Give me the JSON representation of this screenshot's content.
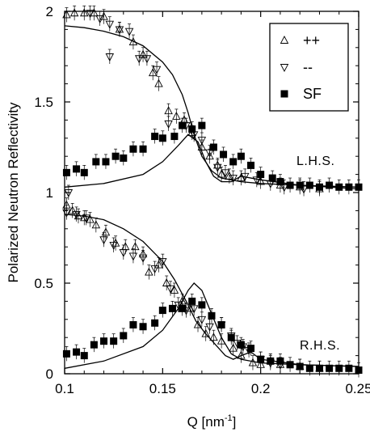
{
  "chart_data": {
    "type": "scatter",
    "xlabel": "Q [nm",
    "xlabel_sup": "-1",
    "xlabel_close": "]",
    "ylabel": "Polarized Neutron Reflectivity",
    "xlim": [
      0.1,
      0.25
    ],
    "ylim": [
      0,
      2
    ],
    "x_ticks": [
      "0.1",
      "0.15",
      "0.2",
      "0.25"
    ],
    "x_tick_values": [
      0.1,
      0.15,
      0.2,
      0.25
    ],
    "y_ticks": [
      "0",
      "0.5",
      "1",
      "1.5",
      "2"
    ],
    "y_tick_values": [
      0,
      0.5,
      1,
      1.5,
      2
    ],
    "grid": false,
    "legend_position": "top-right",
    "annotations": [
      "L.H.S.",
      "R.H.S."
    ],
    "series": [
      {
        "name": "++",
        "marker": "triangle-up-open",
        "points": [
          [
            0.101,
            1.98
          ],
          [
            0.105,
            1.99
          ],
          [
            0.11,
            1.99
          ],
          [
            0.115,
            1.99
          ],
          [
            0.12,
            1.97
          ],
          [
            0.128,
            1.9
          ],
          [
            0.135,
            1.83
          ],
          [
            0.14,
            1.76
          ],
          [
            0.145,
            1.66
          ],
          [
            0.148,
            1.6
          ],
          [
            0.153,
            1.45
          ],
          [
            0.157,
            1.42
          ],
          [
            0.161,
            1.4
          ],
          [
            0.165,
            1.33
          ],
          [
            0.17,
            1.25
          ],
          [
            0.174,
            1.2
          ],
          [
            0.178,
            1.15
          ],
          [
            0.18,
            1.1
          ],
          [
            0.184,
            1.09
          ],
          [
            0.19,
            1.08
          ],
          [
            0.2,
            1.06
          ],
          [
            0.21,
            1.04
          ],
          [
            0.22,
            1.03
          ],
          [
            0.23,
            1.02
          ],
          [
            0.101,
            0.93
          ],
          [
            0.104,
            0.9
          ],
          [
            0.107,
            0.87
          ],
          [
            0.11,
            0.86
          ],
          [
            0.113,
            0.85
          ],
          [
            0.116,
            0.82
          ],
          [
            0.121,
            0.78
          ],
          [
            0.126,
            0.72
          ],
          [
            0.131,
            0.7
          ],
          [
            0.136,
            0.7
          ],
          [
            0.14,
            0.66
          ],
          [
            0.143,
            0.56
          ],
          [
            0.148,
            0.6
          ],
          [
            0.152,
            0.5
          ],
          [
            0.156,
            0.46
          ],
          [
            0.16,
            0.4
          ],
          [
            0.164,
            0.36
          ],
          [
            0.168,
            0.27
          ],
          [
            0.172,
            0.22
          ],
          [
            0.176,
            0.2
          ],
          [
            0.18,
            0.18
          ],
          [
            0.186,
            0.14
          ],
          [
            0.19,
            0.1
          ],
          [
            0.196,
            0.06
          ],
          [
            0.2,
            0.05
          ],
          [
            0.205,
            0.07
          ],
          [
            0.21,
            0.05
          ],
          [
            0.22,
            0.04
          ],
          [
            0.23,
            0.03
          ]
        ]
      },
      {
        "name": "--",
        "marker": "triangle-down-open",
        "points": [
          [
            0.113,
            1.99
          ],
          [
            0.118,
            1.96
          ],
          [
            0.123,
            1.93
          ],
          [
            0.128,
            1.9
          ],
          [
            0.133,
            1.89
          ],
          [
            0.138,
            1.74
          ],
          [
            0.142,
            1.74
          ],
          [
            0.147,
            1.68
          ],
          [
            0.123,
            1.75
          ],
          [
            0.153,
            1.38
          ],
          [
            0.162,
            1.37
          ],
          [
            0.166,
            1.32
          ],
          [
            0.17,
            1.29
          ],
          [
            0.174,
            1.22
          ],
          [
            0.178,
            1.14
          ],
          [
            0.182,
            1.11
          ],
          [
            0.186,
            1.08
          ],
          [
            0.192,
            1.09
          ],
          [
            0.198,
            1.07
          ],
          [
            0.205,
            1.05
          ],
          [
            0.212,
            1.03
          ],
          [
            0.222,
            1.02
          ],
          [
            0.102,
            1.0
          ],
          [
            0.101,
            0.89
          ],
          [
            0.106,
            0.88
          ],
          [
            0.111,
            0.86
          ],
          [
            0.12,
            0.74
          ],
          [
            0.125,
            0.71
          ],
          [
            0.13,
            0.67
          ],
          [
            0.135,
            0.65
          ],
          [
            0.14,
            0.64
          ],
          [
            0.146,
            0.58
          ],
          [
            0.15,
            0.62
          ],
          [
            0.154,
            0.47
          ],
          [
            0.158,
            0.38
          ],
          [
            0.162,
            0.35
          ],
          [
            0.166,
            0.36
          ],
          [
            0.17,
            0.3
          ],
          [
            0.174,
            0.26
          ],
          [
            0.18,
            0.27
          ],
          [
            0.185,
            0.21
          ],
          [
            0.188,
            0.17
          ],
          [
            0.191,
            0.15
          ],
          [
            0.194,
            0.13
          ],
          [
            0.2,
            0.08
          ],
          [
            0.205,
            0.06
          ],
          [
            0.21,
            0.05
          ]
        ]
      },
      {
        "name": "SF",
        "marker": "square-filled",
        "points": [
          [
            0.101,
            1.11
          ],
          [
            0.106,
            1.13
          ],
          [
            0.11,
            1.11
          ],
          [
            0.116,
            1.17
          ],
          [
            0.121,
            1.17
          ],
          [
            0.126,
            1.2
          ],
          [
            0.13,
            1.19
          ],
          [
            0.135,
            1.24
          ],
          [
            0.14,
            1.24
          ],
          [
            0.146,
            1.31
          ],
          [
            0.15,
            1.3
          ],
          [
            0.156,
            1.31
          ],
          [
            0.16,
            1.37
          ],
          [
            0.165,
            1.35
          ],
          [
            0.17,
            1.37
          ],
          [
            0.176,
            1.25
          ],
          [
            0.181,
            1.21
          ],
          [
            0.186,
            1.17
          ],
          [
            0.19,
            1.2
          ],
          [
            0.195,
            1.15
          ],
          [
            0.2,
            1.1
          ],
          [
            0.206,
            1.08
          ],
          [
            0.21,
            1.06
          ],
          [
            0.215,
            1.04
          ],
          [
            0.22,
            1.04
          ],
          [
            0.225,
            1.04
          ],
          [
            0.23,
            1.03
          ],
          [
            0.235,
            1.04
          ],
          [
            0.24,
            1.03
          ],
          [
            0.245,
            1.03
          ],
          [
            0.25,
            1.03
          ],
          [
            0.101,
            0.11
          ],
          [
            0.106,
            0.12
          ],
          [
            0.11,
            0.1
          ],
          [
            0.115,
            0.16
          ],
          [
            0.12,
            0.18
          ],
          [
            0.125,
            0.18
          ],
          [
            0.13,
            0.21
          ],
          [
            0.135,
            0.27
          ],
          [
            0.14,
            0.26
          ],
          [
            0.146,
            0.28
          ],
          [
            0.15,
            0.35
          ],
          [
            0.155,
            0.36
          ],
          [
            0.16,
            0.36
          ],
          [
            0.165,
            0.4
          ],
          [
            0.17,
            0.38
          ],
          [
            0.175,
            0.32
          ],
          [
            0.18,
            0.27
          ],
          [
            0.185,
            0.2
          ],
          [
            0.19,
            0.16
          ],
          [
            0.195,
            0.14
          ],
          [
            0.2,
            0.08
          ],
          [
            0.205,
            0.07
          ],
          [
            0.21,
            0.07
          ],
          [
            0.215,
            0.05
          ],
          [
            0.22,
            0.04
          ],
          [
            0.225,
            0.03
          ],
          [
            0.23,
            0.03
          ],
          [
            0.235,
            0.03
          ],
          [
            0.24,
            0.03
          ],
          [
            0.245,
            0.03
          ],
          [
            0.25,
            0.02
          ]
        ]
      }
    ],
    "curves": [
      {
        "points": [
          [
            0.1,
            1.92
          ],
          [
            0.11,
            1.91
          ],
          [
            0.12,
            1.89
          ],
          [
            0.13,
            1.86
          ],
          [
            0.14,
            1.81
          ],
          [
            0.15,
            1.72
          ],
          [
            0.155,
            1.65
          ],
          [
            0.16,
            1.54
          ],
          [
            0.163,
            1.44
          ],
          [
            0.166,
            1.32
          ],
          [
            0.17,
            1.2
          ],
          [
            0.175,
            1.12
          ],
          [
            0.18,
            1.08
          ],
          [
            0.19,
            1.06
          ],
          [
            0.2,
            1.05
          ],
          [
            0.22,
            1.04
          ],
          [
            0.25,
            1.03
          ]
        ]
      },
      {
        "points": [
          [
            0.1,
            1.03
          ],
          [
            0.12,
            1.05
          ],
          [
            0.14,
            1.1
          ],
          [
            0.15,
            1.17
          ],
          [
            0.158,
            1.26
          ],
          [
            0.163,
            1.32
          ],
          [
            0.168,
            1.28
          ],
          [
            0.172,
            1.17
          ],
          [
            0.176,
            1.09
          ],
          [
            0.18,
            1.06
          ],
          [
            0.185,
            1.06
          ],
          [
            0.19,
            1.09
          ],
          [
            0.2,
            1.07
          ],
          [
            0.22,
            1.04
          ],
          [
            0.25,
            1.02
          ]
        ]
      },
      {
        "points": [
          [
            0.1,
            0.88
          ],
          [
            0.11,
            0.87
          ],
          [
            0.12,
            0.85
          ],
          [
            0.13,
            0.8
          ],
          [
            0.14,
            0.73
          ],
          [
            0.15,
            0.62
          ],
          [
            0.156,
            0.52
          ],
          [
            0.162,
            0.4
          ],
          [
            0.167,
            0.29
          ],
          [
            0.172,
            0.22
          ],
          [
            0.177,
            0.16
          ],
          [
            0.182,
            0.1
          ],
          [
            0.186,
            0.08
          ],
          [
            0.19,
            0.1
          ],
          [
            0.195,
            0.12
          ],
          [
            0.2,
            0.08
          ],
          [
            0.22,
            0.05
          ],
          [
            0.25,
            0.04
          ]
        ]
      },
      {
        "points": [
          [
            0.1,
            0.03
          ],
          [
            0.12,
            0.07
          ],
          [
            0.14,
            0.15
          ],
          [
            0.15,
            0.24
          ],
          [
            0.158,
            0.36
          ],
          [
            0.163,
            0.46
          ],
          [
            0.166,
            0.5
          ],
          [
            0.17,
            0.46
          ],
          [
            0.175,
            0.33
          ],
          [
            0.18,
            0.2
          ],
          [
            0.185,
            0.11
          ],
          [
            0.19,
            0.08
          ],
          [
            0.2,
            0.06
          ],
          [
            0.22,
            0.05
          ],
          [
            0.25,
            0.04
          ]
        ]
      }
    ]
  }
}
